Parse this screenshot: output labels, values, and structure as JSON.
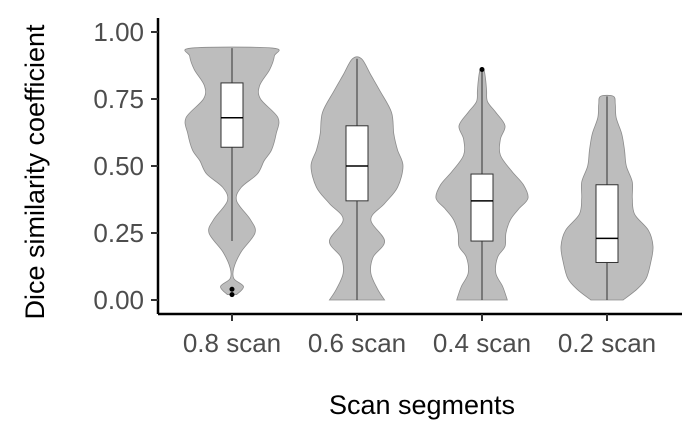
{
  "chart_data": {
    "type": "violin",
    "xlabel": "Scan segments",
    "ylabel": "Dice similarity coefficient",
    "ylim": [
      0,
      1.0
    ],
    "yticks": [
      "0.00",
      "0.25",
      "0.50",
      "0.75",
      "1.00"
    ],
    "categories": [
      "0.8 scan",
      "0.6 scan",
      "0.4 scan",
      "0.2 scan"
    ],
    "grid": false,
    "legend": "none",
    "colors": {
      "violin_fill": "#bdbdbd",
      "violin_stroke": "#8c8c8c",
      "box_fill": "#ffffff",
      "axis": "#000000",
      "tick_text": "#4d4d4d"
    },
    "series": [
      {
        "category": "0.8 scan",
        "min": 0.02,
        "q1": 0.57,
        "median": 0.68,
        "q3": 0.81,
        "max": 0.94,
        "whisker_low": 0.22,
        "whisker_high": 0.94,
        "outliers": [
          0.02,
          0.04
        ],
        "density": [
          [
            0.02,
            0.1
          ],
          [
            0.05,
            0.25
          ],
          [
            0.08,
            0.04
          ],
          [
            0.12,
            0.04
          ],
          [
            0.18,
            0.2
          ],
          [
            0.25,
            0.5
          ],
          [
            0.3,
            0.4
          ],
          [
            0.37,
            0.1
          ],
          [
            0.42,
            0.2
          ],
          [
            0.47,
            0.55
          ],
          [
            0.52,
            0.7
          ],
          [
            0.56,
            0.86
          ],
          [
            0.62,
            0.96
          ],
          [
            0.68,
            1.0
          ],
          [
            0.75,
            0.62
          ],
          [
            0.8,
            0.6
          ],
          [
            0.86,
            0.82
          ],
          [
            0.91,
            0.92
          ],
          [
            0.94,
            0.88
          ]
        ]
      },
      {
        "category": "0.6 scan",
        "min": 0.0,
        "q1": 0.37,
        "median": 0.5,
        "q3": 0.65,
        "max": 0.9,
        "whisker_low": 0.0,
        "whisker_high": 0.9,
        "outliers": [],
        "density": [
          [
            0.0,
            0.6
          ],
          [
            0.04,
            0.45
          ],
          [
            0.1,
            0.3
          ],
          [
            0.16,
            0.35
          ],
          [
            0.22,
            0.6
          ],
          [
            0.3,
            0.3
          ],
          [
            0.36,
            0.6
          ],
          [
            0.42,
            0.88
          ],
          [
            0.5,
            1.0
          ],
          [
            0.56,
            0.88
          ],
          [
            0.62,
            0.8
          ],
          [
            0.7,
            0.75
          ],
          [
            0.78,
            0.5
          ],
          [
            0.84,
            0.3
          ],
          [
            0.9,
            0.1
          ]
        ]
      },
      {
        "category": "0.4 scan",
        "min": 0.0,
        "q1": 0.22,
        "median": 0.37,
        "q3": 0.47,
        "max": 0.86,
        "whisker_low": 0.0,
        "whisker_high": 0.86,
        "outliers": [
          0.86
        ],
        "density": [
          [
            0.0,
            0.55
          ],
          [
            0.05,
            0.45
          ],
          [
            0.1,
            0.3
          ],
          [
            0.16,
            0.34
          ],
          [
            0.2,
            0.5
          ],
          [
            0.25,
            0.52
          ],
          [
            0.3,
            0.62
          ],
          [
            0.34,
            0.8
          ],
          [
            0.38,
            1.0
          ],
          [
            0.43,
            0.9
          ],
          [
            0.48,
            0.65
          ],
          [
            0.54,
            0.4
          ],
          [
            0.6,
            0.4
          ],
          [
            0.65,
            0.5
          ],
          [
            0.7,
            0.3
          ],
          [
            0.74,
            0.12
          ],
          [
            0.78,
            0.1
          ],
          [
            0.82,
            0.08
          ],
          [
            0.86,
            0.04
          ]
        ]
      },
      {
        "category": "0.2 scan",
        "min": 0.0,
        "q1": 0.14,
        "median": 0.23,
        "q3": 0.43,
        "max": 0.76,
        "whisker_low": 0.0,
        "whisker_high": 0.76,
        "outliers": [],
        "density": [
          [
            0.0,
            0.35
          ],
          [
            0.04,
            0.65
          ],
          [
            0.08,
            0.85
          ],
          [
            0.14,
            0.95
          ],
          [
            0.2,
            1.0
          ],
          [
            0.26,
            0.9
          ],
          [
            0.32,
            0.6
          ],
          [
            0.38,
            0.55
          ],
          [
            0.44,
            0.55
          ],
          [
            0.5,
            0.42
          ],
          [
            0.56,
            0.38
          ],
          [
            0.62,
            0.32
          ],
          [
            0.68,
            0.2
          ],
          [
            0.73,
            0.18
          ],
          [
            0.76,
            0.14
          ]
        ]
      }
    ]
  }
}
